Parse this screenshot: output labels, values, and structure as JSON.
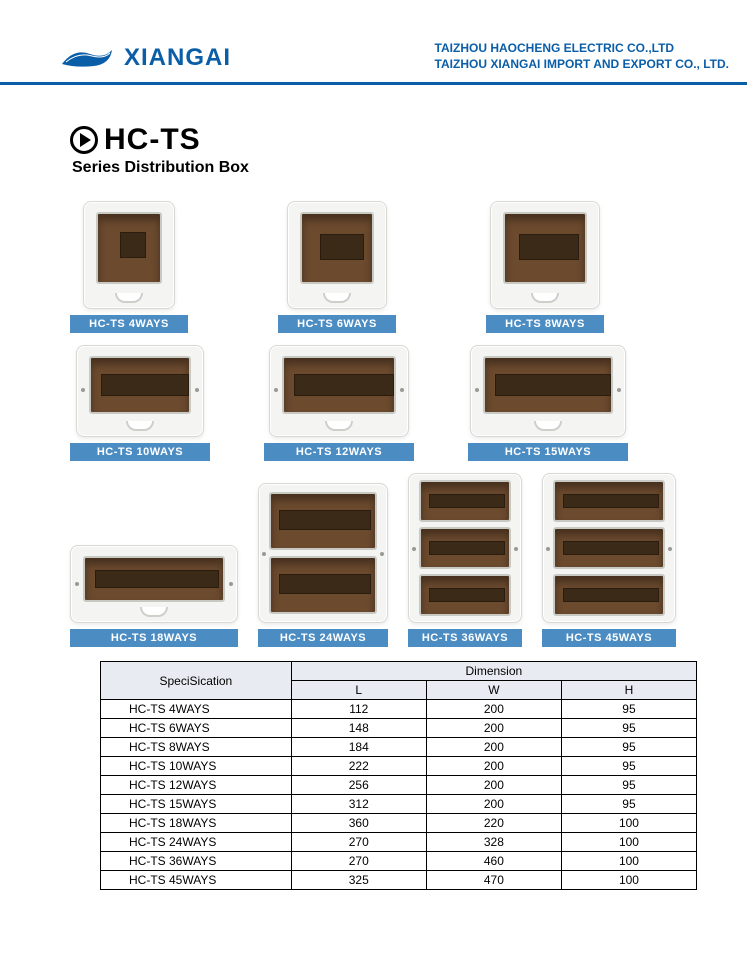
{
  "brand_name": "XIANGAI",
  "brand_color": "#0a5ea8",
  "company_line1": "TAIZHOU HAOCHENG ELECTRIC CO.,LTD",
  "company_line2": "TAIZHOU XIANGAI IMPORT AND EXPORT CO., LTD.",
  "series_code": "HC-TS",
  "series_subtitle": "Series Distribution Box",
  "caption_bg": "#4b8cc3",
  "products": {
    "p1": "HC-TS  4WAYS",
    "p2": "HC-TS  6WAYS",
    "p3": "HC-TS  8WAYS",
    "p4": "HC-TS  10WAYS",
    "p5": "HC-TS  12WAYS",
    "p6": "HC-TS  15WAYS",
    "p7": "HC-TS  18WAYS",
    "p8": "HC-TS  24WAYS",
    "p9": "HC-TS  36WAYS",
    "p10": "HC-TS  45WAYS"
  },
  "table": {
    "spec_header": "SpeciSication",
    "dim_header": "Dimension",
    "cols": {
      "L": "L",
      "W": "W",
      "H": "H"
    },
    "rows": [
      {
        "model": "HC-TS  4WAYS",
        "L": "112",
        "W": "200",
        "H": "95"
      },
      {
        "model": "HC-TS  6WAYS",
        "L": "148",
        "W": "200",
        "H": "95"
      },
      {
        "model": "HC-TS  8WAYS",
        "L": "184",
        "W": "200",
        "H": "95"
      },
      {
        "model": "HC-TS  10WAYS",
        "L": "222",
        "W": "200",
        "H": "95"
      },
      {
        "model": "HC-TS  12WAYS",
        "L": "256",
        "W": "200",
        "H": "95"
      },
      {
        "model": "HC-TS  15WAYS",
        "L": "312",
        "W": "200",
        "H": "95"
      },
      {
        "model": "HC-TS  18WAYS",
        "L": "360",
        "W": "220",
        "H": "100"
      },
      {
        "model": "HC-TS  24WAYS",
        "L": "270",
        "W": "328",
        "H": "100"
      },
      {
        "model": "HC-TS  36WAYS",
        "L": "270",
        "W": "460",
        "H": "100"
      },
      {
        "model": "HC-TS  45WAYS",
        "L": "325",
        "W": "470",
        "H": "100"
      }
    ]
  },
  "styling": {
    "box_body": "#f4f4f2",
    "box_border": "#d8d8d4",
    "door_color": "#6b4a2e",
    "window_color": "#3b2a18"
  }
}
